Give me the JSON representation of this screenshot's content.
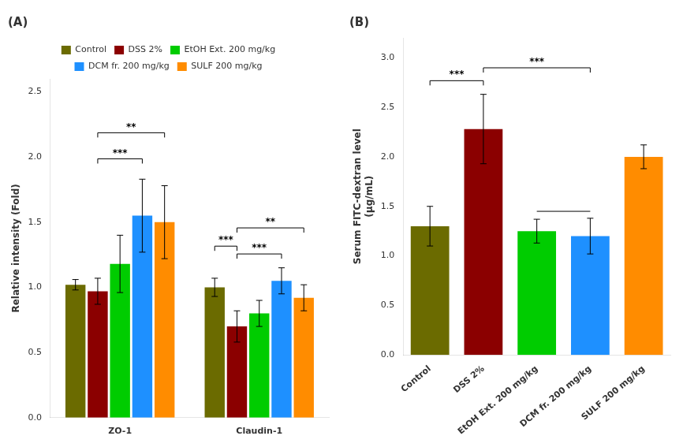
{
  "chart_data": [
    {
      "type": "bar",
      "title": "(A)",
      "categories": [
        "ZO-1",
        "Claudin-1"
      ],
      "series": [
        {
          "name": "Control",
          "color": "#6B6B00",
          "values": [
            1.02,
            1.0
          ],
          "errors": [
            0.04,
            0.07
          ]
        },
        {
          "name": "DSS 2%",
          "color": "#8B0000",
          "values": [
            0.97,
            0.7
          ],
          "errors": [
            0.1,
            0.12
          ]
        },
        {
          "name": "EtOH Ext. 200 mg/kg",
          "color": "#00CC00",
          "values": [
            1.18,
            0.8
          ],
          "errors": [
            0.22,
            0.1
          ]
        },
        {
          "name": "DCM fr. 200 mg/kg",
          "color": "#1E90FF",
          "values": [
            1.55,
            1.05
          ],
          "errors": [
            0.28,
            0.1
          ]
        },
        {
          "name": "SULF 200 mg/kg",
          "color": "#FF8C00",
          "values": [
            1.5,
            0.92
          ],
          "errors": [
            0.28,
            0.1
          ]
        }
      ],
      "ylabel": "Relative intensity (Fold)",
      "ylim": [
        0,
        2.6
      ],
      "yticks": [
        {
          "value": 0,
          "label": "0.0"
        },
        {
          "value": 0.5,
          "label": "0.5"
        },
        {
          "value": 1,
          "label": "1.0"
        },
        {
          "value": 1.5,
          "label": "1.5"
        },
        {
          "value": 2,
          "label": "2.0"
        },
        {
          "value": 2.5,
          "label": "2.5"
        }
      ],
      "grid": false,
      "legend": "top",
      "annotations": [
        {
          "text": "***",
          "category": "ZO-1",
          "from": "DSS 2%",
          "to": "DCM fr. 200 mg/kg",
          "y": 1.95
        },
        {
          "text": "**",
          "category": "ZO-1",
          "from": "DSS 2%",
          "to": "SULF 200 mg/kg",
          "y": 2.15
        },
        {
          "text": "***",
          "category": "Claudin-1",
          "from": "Control",
          "to": "DSS 2%",
          "y": 1.28
        },
        {
          "text": "***",
          "category": "Claudin-1",
          "from": "DSS 2%",
          "to": "DCM fr. 200 mg/kg",
          "y": 1.22
        },
        {
          "text": "**",
          "category": "Claudin-1",
          "from": "DSS 2%",
          "to": "SULF 200 mg/kg",
          "y": 1.42
        }
      ]
    },
    {
      "type": "bar",
      "title": "(B)",
      "categories": [
        "Control",
        "DSS 2%",
        "EtOH Ext. 200 mg/kg",
        "DCM fr. 200 mg/kg",
        "SULF 200 mg/kg"
      ],
      "values": [
        1.3,
        2.28,
        1.25,
        1.2,
        2.0
      ],
      "errors": [
        0.2,
        0.35,
        0.12,
        0.18,
        0.12
      ],
      "colors": [
        "#6B6B00",
        "#8B0000",
        "#00CC00",
        "#1E90FF",
        "#FF8C00"
      ],
      "ylabel": "Serum FITC-dextran level\n(μg/mL)",
      "ylim": [
        0,
        3.2
      ],
      "yticks": [
        {
          "value": 0,
          "label": "0.0"
        },
        {
          "value": 0.5,
          "label": "0.5"
        },
        {
          "value": 1,
          "label": "1.0"
        },
        {
          "value": 1.5,
          "label": "1.5"
        },
        {
          "value": 2,
          "label": "2.0"
        },
        {
          "value": 2.5,
          "label": "2.5"
        },
        {
          "value": 3,
          "label": "3.0"
        }
      ],
      "grid": false,
      "annotations": [
        {
          "text": "***",
          "from": "Control",
          "to": "DSS 2%",
          "y": 2.72
        },
        {
          "text": "***",
          "from": "DSS 2%",
          "to": "DCM fr. 200 mg/kg",
          "y": 2.85
        },
        {
          "from": "EtOH Ext. 200 mg/kg",
          "to": "DCM fr. 200 mg/kg",
          "y": 1.45
        }
      ]
    }
  ]
}
